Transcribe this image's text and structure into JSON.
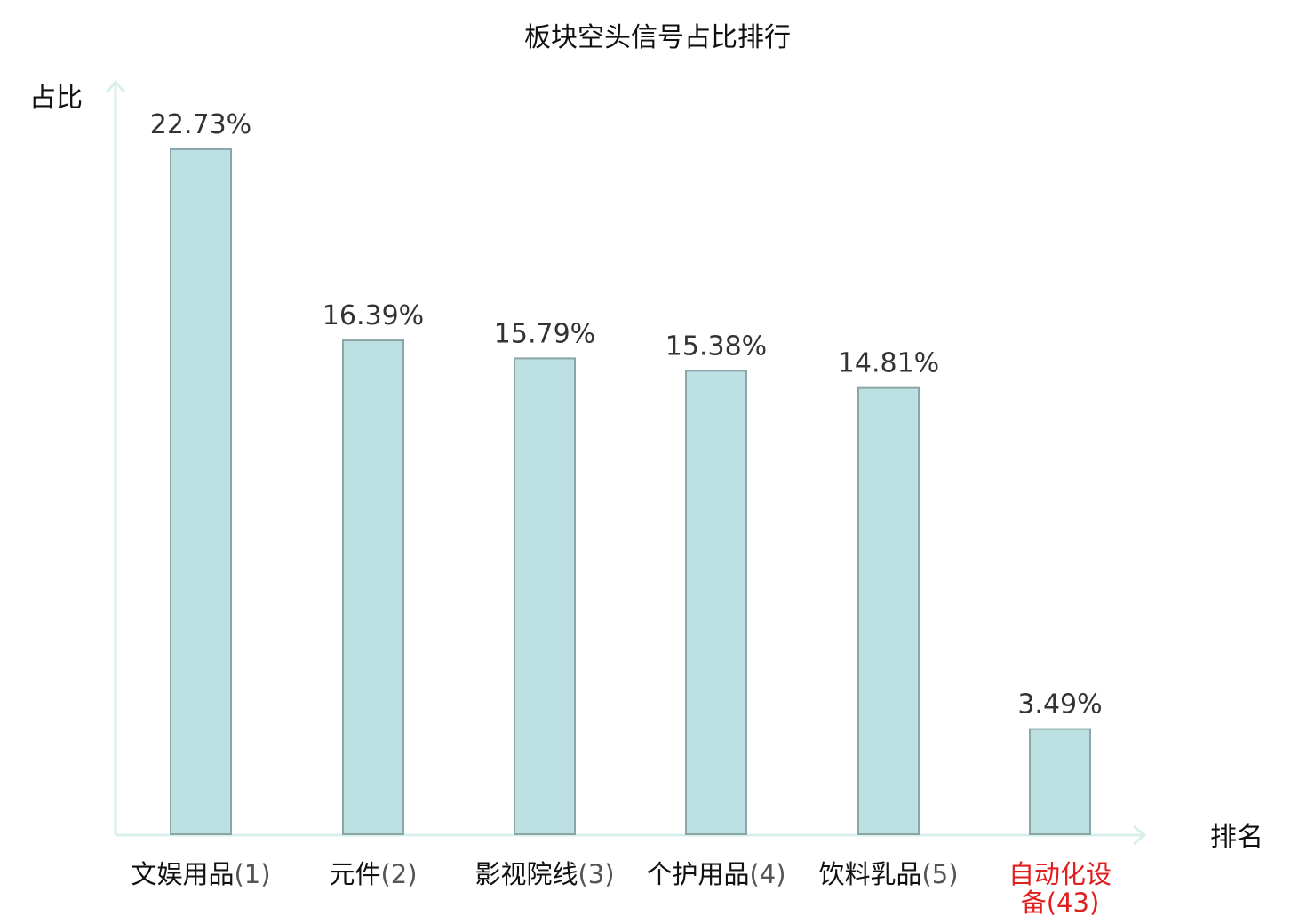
{
  "chart_data": {
    "type": "bar",
    "title": "板块空头信号占比排行",
    "ylabel": "占比",
    "xlabel": "排名",
    "ylim": [
      0,
      25
    ],
    "grid": false,
    "legend": "none",
    "categories": [
      {
        "name": "文娱用品",
        "rank": "(1)",
        "highlight": false
      },
      {
        "name": "元件",
        "rank": "(2)",
        "highlight": false
      },
      {
        "name": "影视院线",
        "rank": "(3)",
        "highlight": false
      },
      {
        "name": "个护用品",
        "rank": "(4)",
        "highlight": false
      },
      {
        "name": "饮料乳品",
        "rank": "(5)",
        "highlight": false
      },
      {
        "name": "自动化设备",
        "rank": "(43)",
        "highlight": true
      }
    ],
    "values": [
      22.73,
      16.39,
      15.79,
      15.38,
      14.81,
      3.49
    ],
    "value_labels": [
      "22.73%",
      "16.39%",
      "15.79%",
      "15.38%",
      "14.81%",
      "3.49%"
    ],
    "colors": {
      "bar_fill": "#bde0e2",
      "bar_stroke": "#8aa6a8",
      "axis": "#d8f0ec",
      "highlight_text": "#e02020",
      "text": "#111111",
      "rank_text": "#555555"
    }
  }
}
